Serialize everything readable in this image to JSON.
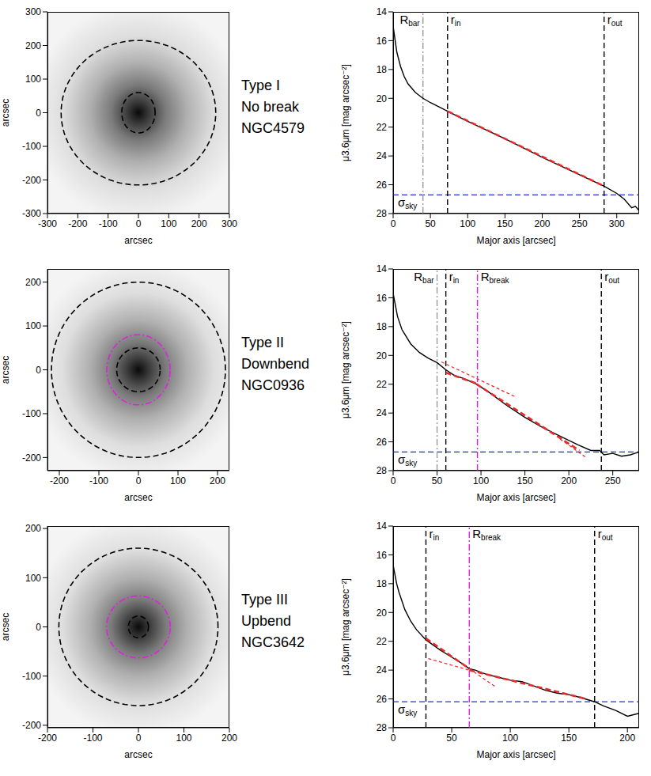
{
  "chart_data": [
    {
      "type": "image",
      "xlabel": "arcsec",
      "ylabel": "arcsec",
      "xlim": [
        -300,
        300
      ],
      "xticks": [
        -300,
        -200,
        -100,
        0,
        100,
        200,
        300
      ],
      "ylim": [
        -300,
        300
      ],
      "yticks": [
        -300,
        -200,
        -100,
        0,
        100,
        200,
        300
      ],
      "ellipses": [
        {
          "a": 255,
          "b": 215,
          "color": "#000000",
          "line_style": "dashed"
        },
        {
          "a": 55,
          "b": 60,
          "color": "#000000",
          "line_style": "dashed"
        }
      ],
      "annotations": [
        "Type I",
        "No break",
        "NGC4579"
      ]
    },
    {
      "type": "line",
      "xlabel": "Major axis [arcsec]",
      "ylabel": "μ3.6μm [mag arcsec⁻²]",
      "xlim": [
        0,
        330
      ],
      "xticks": [
        0,
        50,
        100,
        150,
        200,
        250,
        300
      ],
      "ylim": [
        28,
        14
      ],
      "yticks": [
        14,
        16,
        18,
        20,
        22,
        24,
        26,
        28
      ],
      "series": [
        {
          "color": "#000000",
          "line_style": "solid",
          "x": [
            0,
            5,
            10,
            15,
            20,
            30,
            40,
            50,
            60,
            73,
            100,
            150,
            200,
            250,
            283,
            300,
            310,
            320,
            325,
            330
          ],
          "values": [
            15,
            16.8,
            17.8,
            18.5,
            19.0,
            19.6,
            20.0,
            20.3,
            20.55,
            20.9,
            21.6,
            22.8,
            24.1,
            25.3,
            26.1,
            26.6,
            27.0,
            27.6,
            27.5,
            27.8
          ]
        },
        {
          "color": "#e8292b",
          "line_style": "dashed",
          "x": [
            73,
            283
          ],
          "values": [
            20.9,
            26.1
          ]
        }
      ],
      "vlines": [
        {
          "x": 40,
          "label": "Rbar",
          "color": "#999999",
          "line_style": "dash_dot"
        },
        {
          "x": 73,
          "label": "rin",
          "color": "#000000",
          "line_style": "dashed"
        },
        {
          "x": 283,
          "label": "rout",
          "color": "#000000",
          "line_style": "dashed"
        }
      ],
      "hlines": [
        {
          "y": 26.7,
          "label": "σsky",
          "color": "#2233cc",
          "line_style": "dashed"
        }
      ]
    },
    {
      "type": "image",
      "xlabel": "arcsec",
      "ylabel": "arcsec",
      "xlim": [
        -230,
        230
      ],
      "xticks": [
        -200,
        -100,
        0,
        100,
        200
      ],
      "ylim": [
        -230,
        230
      ],
      "yticks": [
        -200,
        -100,
        0,
        100,
        200
      ],
      "ellipses": [
        {
          "a": 220,
          "b": 200,
          "color": "#000000",
          "line_style": "dashed"
        },
        {
          "a": 80,
          "b": 80,
          "color": "#e020e0",
          "line_style": "dash_dot"
        },
        {
          "a": 55,
          "b": 50,
          "color": "#000000",
          "line_style": "dashed"
        }
      ],
      "annotations": [
        "Type II",
        "Downbend",
        "NGC0936"
      ]
    },
    {
      "type": "line",
      "xlabel": "Major axis [arcsec]",
      "ylabel": "μ3.6μm [mag arcsec⁻²]",
      "xlim": [
        0,
        280
      ],
      "xticks": [
        0,
        50,
        100,
        150,
        200,
        250
      ],
      "ylim": [
        28,
        14
      ],
      "yticks": [
        14,
        16,
        18,
        20,
        22,
        24,
        26,
        28
      ],
      "series": [
        {
          "color": "#000000",
          "line_style": "solid",
          "x": [
            0,
            5,
            10,
            20,
            30,
            40,
            50,
            60,
            70,
            80,
            95,
            110,
            130,
            150,
            170,
            190,
            210,
            225,
            235,
            240,
            250,
            260,
            270,
            280
          ],
          "values": [
            15.7,
            17.3,
            18.2,
            19.2,
            19.8,
            20.2,
            20.5,
            21.0,
            21.4,
            21.6,
            22.0,
            22.6,
            23.5,
            24.3,
            25.0,
            25.6,
            26.2,
            26.6,
            26.6,
            26.9,
            26.8,
            27.0,
            26.9,
            26.7
          ]
        },
        {
          "color": "#e8292b",
          "line_style": "short_dashed",
          "x": [
            55,
            140
          ],
          "values": [
            20.45,
            22.9
          ]
        },
        {
          "color": "#e8292b",
          "line_style": "short_dashed",
          "x": [
            190,
            220
          ],
          "values": [
            25.8,
            27.1
          ]
        },
        {
          "color": "#e8292b",
          "line_style": "dashed",
          "x": [
            60,
            95
          ],
          "values": [
            21.2,
            21.95
          ]
        },
        {
          "color": "#e8292b",
          "line_style": "dashed",
          "x": [
            95,
            212
          ],
          "values": [
            22.0,
            26.6
          ]
        }
      ],
      "vlines": [
        {
          "x": 50,
          "label": "Rbar",
          "color": "#999999",
          "line_style": "dash_dot"
        },
        {
          "x": 60,
          "label": "rin",
          "color": "#000000",
          "line_style": "dashed"
        },
        {
          "x": 96,
          "label": "Rbreak",
          "color": "#e020e0",
          "line_style": "dash_dot"
        },
        {
          "x": 237,
          "label": "rout",
          "color": "#000000",
          "line_style": "dashed"
        }
      ],
      "hlines": [
        {
          "y": 26.7,
          "label": "σsky",
          "color": "#2233cc",
          "line_style": "dashed"
        }
      ]
    },
    {
      "type": "image",
      "xlabel": "arcsec",
      "ylabel": "arcsec",
      "xlim": [
        -200,
        200
      ],
      "xticks": [
        -200,
        -100,
        0,
        100,
        200
      ],
      "ylim": [
        -205,
        205
      ],
      "yticks": [
        -200,
        -100,
        0,
        100,
        200
      ],
      "ellipses": [
        {
          "a": 175,
          "b": 160,
          "color": "#000000",
          "line_style": "dashed"
        },
        {
          "a": 70,
          "b": 63,
          "color": "#e020e0",
          "line_style": "dash_dot"
        },
        {
          "a": 22,
          "b": 22,
          "color": "#000000",
          "line_style": "dashed"
        }
      ],
      "annotations": [
        "Type III",
        "Upbend",
        "NGC3642"
      ]
    },
    {
      "type": "line",
      "xlabel": "Major axis [arcsec]",
      "ylabel": "μ3.6μm [mag arcsec⁻²]",
      "xlim": [
        0,
        210
      ],
      "xticks": [
        0,
        50,
        100,
        150,
        200
      ],
      "ylim": [
        28,
        14
      ],
      "yticks": [
        14,
        16,
        18,
        20,
        22,
        24,
        26,
        28
      ],
      "series": [
        {
          "color": "#000000",
          "line_style": "solid",
          "x": [
            0,
            3,
            5,
            10,
            15,
            20,
            28,
            40,
            50,
            60,
            65,
            70,
            80,
            90,
            100,
            110,
            120,
            130,
            140,
            150,
            160,
            172,
            180,
            190,
            200,
            210
          ],
          "values": [
            16.7,
            18,
            18.6,
            19.8,
            20.6,
            21.2,
            21.9,
            22.6,
            23.1,
            23.6,
            23.9,
            24.0,
            24.3,
            24.5,
            24.7,
            24.8,
            25.1,
            25.4,
            25.6,
            25.7,
            25.9,
            26.2,
            26.5,
            26.8,
            27.2,
            27.0
          ]
        },
        {
          "color": "#e8292b",
          "line_style": "short_dashed",
          "x": [
            65,
            88
          ],
          "values": [
            23.9,
            25.2
          ]
        },
        {
          "color": "#e8292b",
          "line_style": "short_dashed",
          "x": [
            30,
            65
          ],
          "values": [
            23.2,
            24.0
          ]
        },
        {
          "color": "#e8292b",
          "line_style": "dashed",
          "x": [
            28,
            65
          ],
          "values": [
            21.8,
            23.9
          ]
        },
        {
          "color": "#e8292b",
          "line_style": "dashed",
          "x": [
            65,
            165
          ],
          "values": [
            24.0,
            26.0
          ]
        }
      ],
      "vlines": [
        {
          "x": 28,
          "label": "rin",
          "color": "#000000",
          "line_style": "dashed"
        },
        {
          "x": 65,
          "label": "Rbreak",
          "color": "#e020e0",
          "line_style": "dash_dot"
        },
        {
          "x": 172,
          "label": "rout",
          "color": "#000000",
          "line_style": "dashed"
        }
      ],
      "hlines": [
        {
          "y": 26.2,
          "label": "σsky",
          "color": "#2233cc",
          "line_style": "dashed"
        }
      ]
    }
  ]
}
